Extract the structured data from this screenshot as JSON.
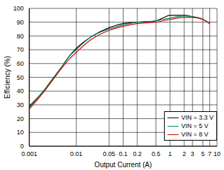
{
  "chart_data": {
    "type": "line",
    "x_label": "Output Current (A)",
    "y_label": "Efficiency (%)",
    "x": [
      0.001,
      0.002,
      0.003,
      0.005,
      0.007,
      0.01,
      0.02,
      0.05,
      0.1,
      0.2,
      0.5,
      0.7,
      1,
      2,
      3,
      5,
      7
    ],
    "series": [
      {
        "name": "VIN = 3.3 V",
        "color": "#000000",
        "values": [
          29,
          40,
          48,
          58,
          65,
          71,
          79,
          86,
          89,
          90,
          91,
          93,
          95,
          95,
          94,
          92,
          89
        ]
      },
      {
        "name": "VIN = 5 V",
        "color": "#008a5e",
        "values": [
          28,
          40,
          48,
          58,
          65,
          70,
          79,
          85,
          88,
          90,
          91,
          92,
          93,
          94.5,
          94,
          92,
          89
        ]
      },
      {
        "name": "VIN = 8 V",
        "color": "#d00000",
        "values": [
          27,
          39,
          47,
          57,
          63,
          68,
          77,
          84,
          87,
          89,
          90,
          91,
          92,
          93.5,
          93.5,
          92,
          89
        ]
      }
    ],
    "xlim": [
      0.001,
      10
    ],
    "ylim": [
      0,
      100
    ],
    "xticks": [
      0.001,
      0.01,
      0.05,
      0.1,
      0.2,
      0.5,
      1,
      2,
      3,
      5,
      7,
      10
    ],
    "yticks": [
      0,
      10,
      20,
      30,
      40,
      50,
      60,
      70,
      80,
      90,
      100
    ],
    "log": "x",
    "grid": true,
    "legend": "lower right"
  }
}
